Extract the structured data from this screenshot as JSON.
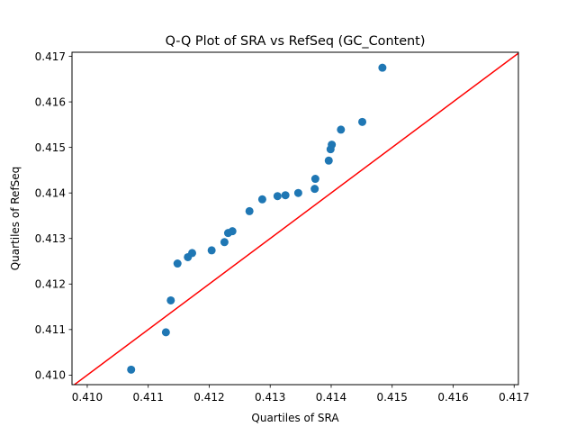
{
  "chart_data": {
    "type": "scatter",
    "title": "Q-Q Plot of SRA vs RefSeq (GC_Content)",
    "xlabel": "Quartiles of SRA",
    "ylabel": "Quartiles of RefSeq",
    "xlim": [
      0.40975,
      0.41707
    ],
    "ylim": [
      0.40979,
      0.41709
    ],
    "xticks": [
      "0.410",
      "0.411",
      "0.412",
      "0.413",
      "0.414",
      "0.415",
      "0.416",
      "0.417"
    ],
    "yticks": [
      "0.410",
      "0.411",
      "0.412",
      "0.413",
      "0.414",
      "0.415",
      "0.416",
      "0.417"
    ],
    "grid": false,
    "points": [
      {
        "x": 0.41072,
        "y": 0.41012
      },
      {
        "x": 0.41129,
        "y": 0.41094
      },
      {
        "x": 0.41137,
        "y": 0.41164
      },
      {
        "x": 0.41148,
        "y": 0.41245
      },
      {
        "x": 0.41165,
        "y": 0.41259
      },
      {
        "x": 0.41172,
        "y": 0.41268
      },
      {
        "x": 0.41204,
        "y": 0.41274
      },
      {
        "x": 0.41225,
        "y": 0.41292
      },
      {
        "x": 0.41231,
        "y": 0.41312
      },
      {
        "x": 0.41238,
        "y": 0.41316
      },
      {
        "x": 0.41266,
        "y": 0.4136
      },
      {
        "x": 0.41287,
        "y": 0.41386
      },
      {
        "x": 0.41312,
        "y": 0.41393
      },
      {
        "x": 0.41325,
        "y": 0.41395
      },
      {
        "x": 0.41346,
        "y": 0.414
      },
      {
        "x": 0.41373,
        "y": 0.41409
      },
      {
        "x": 0.41374,
        "y": 0.41431
      },
      {
        "x": 0.41396,
        "y": 0.41471
      },
      {
        "x": 0.41399,
        "y": 0.41496
      },
      {
        "x": 0.41401,
        "y": 0.41506
      },
      {
        "x": 0.41416,
        "y": 0.41539
      },
      {
        "x": 0.41451,
        "y": 0.41556
      },
      {
        "x": 0.41484,
        "y": 0.41675
      }
    ],
    "reference_line": {
      "color": "#ff0000"
    },
    "marker_color": "#1f77b4",
    "frame_color": "#000000"
  }
}
